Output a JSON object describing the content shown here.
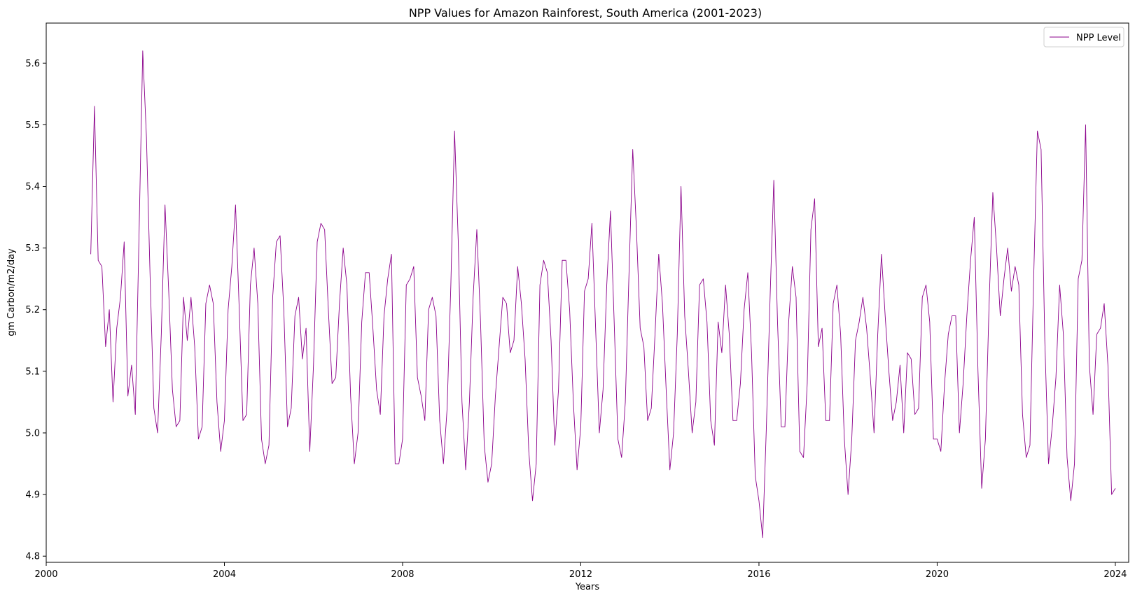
{
  "chart_data": {
    "type": "line",
    "title": "NPP Values for Amazon Rainforest, South America (2001-2023)",
    "xlabel": "Years",
    "ylabel": "gm Carbon/m2/day",
    "xlim": [
      2000,
      2024.3
    ],
    "ylim": [
      4.79,
      5.665
    ],
    "x_ticks": [
      2000,
      2004,
      2008,
      2012,
      2016,
      2020,
      2024
    ],
    "x_tick_labels": [
      "2000",
      "2004",
      "2008",
      "2012",
      "2016",
      "2020",
      "2024"
    ],
    "y_ticks": [
      4.8,
      4.9,
      5.0,
      5.1,
      5.2,
      5.3,
      5.4,
      5.5,
      5.6
    ],
    "y_tick_labels": [
      "4.8",
      "4.9",
      "5.0",
      "5.1",
      "5.2",
      "5.3",
      "5.4",
      "5.5",
      "5.6"
    ],
    "grid": false,
    "legend_position": "top-right",
    "series": [
      {
        "name": "NPP Level",
        "color": "#8b008b",
        "x_start": 2001.0,
        "x_step_years": 0.0833333,
        "values": [
          5.29,
          5.53,
          5.28,
          5.27,
          5.14,
          5.2,
          5.05,
          5.17,
          5.22,
          5.31,
          5.06,
          5.11,
          5.03,
          5.32,
          5.62,
          5.48,
          5.25,
          5.04,
          5.0,
          5.16,
          5.37,
          5.23,
          5.07,
          5.01,
          5.02,
          5.22,
          5.15,
          5.22,
          5.14,
          4.99,
          5.01,
          5.21,
          5.24,
          5.21,
          5.05,
          4.97,
          5.02,
          5.2,
          5.27,
          5.37,
          5.2,
          5.02,
          5.03,
          5.24,
          5.3,
          5.21,
          4.99,
          4.95,
          4.98,
          5.22,
          5.31,
          5.32,
          5.2,
          5.01,
          5.04,
          5.19,
          5.22,
          5.12,
          5.17,
          4.97,
          5.11,
          5.31,
          5.34,
          5.33,
          5.2,
          5.08,
          5.09,
          5.21,
          5.3,
          5.24,
          5.06,
          4.95,
          5.0,
          5.18,
          5.26,
          5.26,
          5.17,
          5.07,
          5.03,
          5.19,
          5.25,
          5.29,
          4.95,
          4.95,
          4.99,
          5.24,
          5.25,
          5.27,
          5.09,
          5.06,
          5.02,
          5.2,
          5.22,
          5.19,
          5.02,
          4.95,
          5.04,
          5.24,
          5.49,
          5.31,
          5.05,
          4.94,
          5.05,
          5.22,
          5.33,
          5.18,
          4.98,
          4.92,
          4.95,
          5.06,
          5.14,
          5.22,
          5.21,
          5.13,
          5.15,
          5.27,
          5.21,
          5.12,
          4.97,
          4.89,
          4.95,
          5.24,
          5.28,
          5.26,
          5.15,
          4.98,
          5.07,
          5.28,
          5.28,
          5.2,
          5.05,
          4.94,
          5.01,
          5.23,
          5.25,
          5.34,
          5.17,
          5.0,
          5.07,
          5.24,
          5.36,
          5.18,
          4.99,
          4.96,
          5.05,
          5.26,
          5.46,
          5.33,
          5.17,
          5.14,
          5.02,
          5.04,
          5.16,
          5.29,
          5.21,
          5.07,
          4.94,
          5.0,
          5.16,
          5.4,
          5.19,
          5.1,
          5.0,
          5.05,
          5.24,
          5.25,
          5.18,
          5.02,
          4.98,
          5.18,
          5.13,
          5.24,
          5.16,
          5.02,
          5.02,
          5.08,
          5.2,
          5.26,
          5.13,
          4.93,
          4.89,
          4.83,
          5.01,
          5.22,
          5.41,
          5.18,
          5.01,
          5.01,
          5.18,
          5.27,
          5.22,
          4.97,
          4.96,
          5.08,
          5.33,
          5.38,
          5.14,
          5.17,
          5.02,
          5.02,
          5.21,
          5.24,
          5.16,
          4.99,
          4.9,
          4.99,
          5.15,
          5.18,
          5.22,
          5.17,
          5.09,
          5.0,
          5.16,
          5.29,
          5.19,
          5.1,
          5.02,
          5.05,
          5.11,
          5.0,
          5.13,
          5.12,
          5.03,
          5.04,
          5.22,
          5.24,
          5.18,
          4.99,
          4.99,
          4.97,
          5.08,
          5.16,
          5.19,
          5.19,
          5.0,
          5.08,
          5.19,
          5.28,
          5.35,
          5.1,
          4.91,
          4.99,
          5.21,
          5.39,
          5.3,
          5.19,
          5.25,
          5.3,
          5.23,
          5.27,
          5.24,
          5.03,
          4.96,
          4.98,
          5.25,
          5.49,
          5.46,
          5.15,
          4.95,
          5.01,
          5.09,
          5.24,
          5.16,
          4.96,
          4.89,
          4.95,
          5.25,
          5.28,
          5.5,
          5.11,
          5.03,
          5.16,
          5.17,
          5.21,
          5.11,
          4.9,
          4.91
        ]
      }
    ]
  }
}
